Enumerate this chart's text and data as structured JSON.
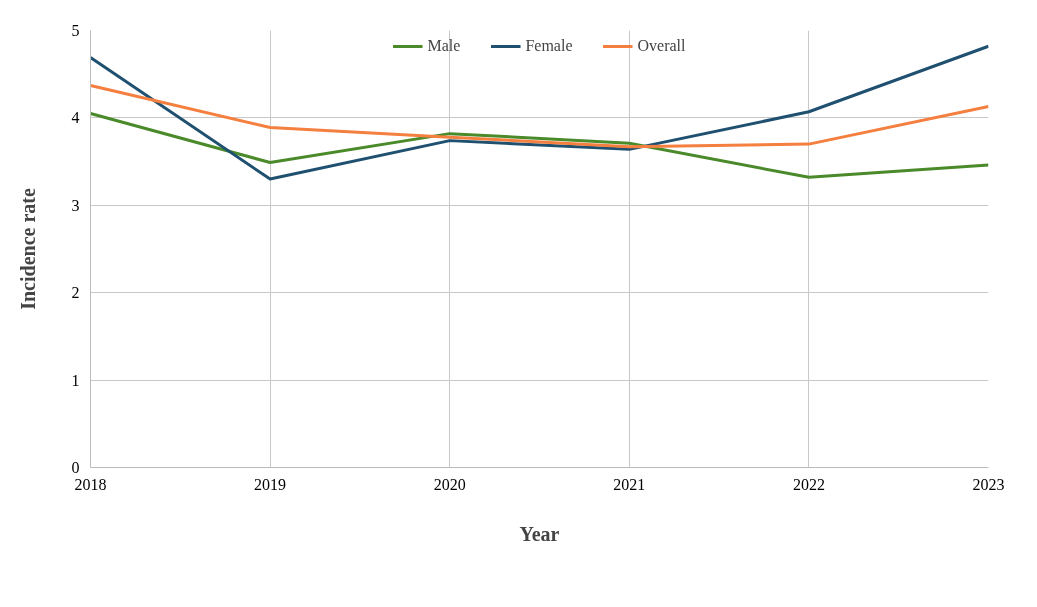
{
  "chart_data": {
    "type": "line",
    "xlabel": "Year",
    "ylabel": "Incidence rate",
    "x": [
      2018,
      2019,
      2020,
      2021,
      2022,
      2023
    ],
    "series": [
      {
        "name": "Male",
        "color": "#4a8a2a",
        "values": [
          4.05,
          3.49,
          3.82,
          3.71,
          3.32,
          3.46
        ]
      },
      {
        "name": "Female",
        "color": "#1f5070",
        "values": [
          4.69,
          3.3,
          3.74,
          3.64,
          4.07,
          4.82
        ]
      },
      {
        "name": "Overall",
        "color": "#f47f3f",
        "values": [
          4.37,
          3.89,
          3.78,
          3.67,
          3.7,
          4.13
        ]
      }
    ],
    "xlim": [
      2018,
      2023
    ],
    "xticks": [
      2018,
      2019,
      2020,
      2021,
      2022,
      2023
    ],
    "ylim": [
      0,
      5
    ],
    "yticks": [
      0,
      1,
      2,
      3,
      4,
      5
    ],
    "grid": true,
    "legend": "top",
    "marker": "none",
    "line_style": "solid"
  }
}
